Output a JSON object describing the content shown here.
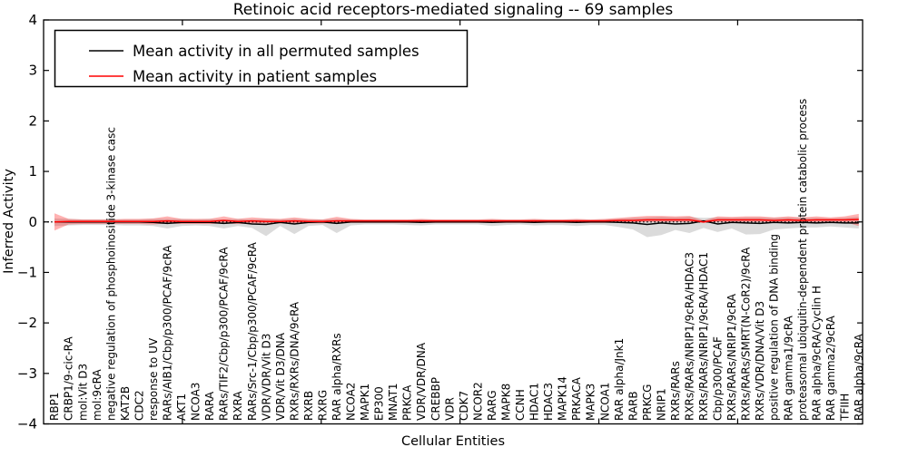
{
  "figure": {
    "kind": "matplotlib-line-plot"
  },
  "chart_data": {
    "type": "line",
    "title": "Retinoic acid receptors-mediated signaling -- 69 samples",
    "xlabel": "Cellular Entities",
    "ylabel": "Inferred Activity",
    "ylim": [
      -4,
      4
    ],
    "yticks": [
      4,
      3,
      2,
      1,
      0,
      -1,
      -2,
      -3,
      -4
    ],
    "x_major_ticks": [
      10,
      20,
      30,
      40,
      50
    ],
    "grid": false,
    "legend_position": "upper left",
    "zero_line": {
      "show": true,
      "style": "dotted",
      "color": "#000000"
    },
    "colors": {
      "permuted_line": "#000000",
      "patient_line": "#ff0000",
      "permuted_band": "#999999",
      "permuted_band_opacity": 0.35,
      "patient_band": "#ff0000",
      "patient_band_opacity": 0.3
    },
    "categories": [
      "RBP1",
      "CRBP1/9-cic-RA",
      "mol:Vit D3",
      "mol:9cRA",
      "negative regulation of phosphoinositide 3-kinase casc",
      "KAT2B",
      "CDC2",
      "response to UV",
      "RARs/AIB1/Cbp/p300/PCAF/9cRA",
      "AKT1",
      "NCOA3",
      "RARA",
      "RARs/TIF2/Cbp/p300/PCAF/9cRA",
      "RXRA",
      "RARs/Src-1/Cbp/p300/PCAF/9cRA",
      "VDR/VDR/Vit D3",
      "VDR/Vit D3/DNA",
      "RXRs/RXRs/DNA/9cRA",
      "RXRB",
      "RXRG",
      "RAR alpha/RXRs",
      "NCOA2",
      "MAPK1",
      "EP300",
      "MNAT1",
      "PRKCA",
      "VDR/VDR/DNA",
      "CREBBP",
      "VDR",
      "CDK7",
      "NCOR2",
      "RARG",
      "MAPK8",
      "CCNH",
      "HDAC1",
      "HDAC3",
      "MAPK14",
      "PRKACA",
      "MAPK3",
      "NCOA1",
      "RAR alpha/Jnk1",
      "RARB",
      "PRKCG",
      "NRIP1",
      "RXRs/RARs",
      "RXRs/RARs/NRIP1/9cRA/HDAC3",
      "RXRs/RARs/NRIP1/9cRA/HDAC1",
      "Cbp/p300/PCAF",
      "RXRs/RARs/NRIP1/9cRA",
      "RXRs/RARs/SMRT(N-CoR2)/9cRA",
      "RXRs/VDR/DNA/Vit D3",
      "positive regulation of DNA binding",
      "RAR gamma1/9cRA",
      "proteasomal ubiquitin-dependent protein catabolic process",
      "RAR alpha/9cRA/Cyclin H",
      "RAR gamma2/9cRA",
      "TFIIH",
      "RAR alpha/9cRA"
    ],
    "series": [
      {
        "name": "Mean activity in all permuted samples",
        "color": "#000000",
        "values": [
          0,
          0,
          0,
          0,
          0,
          0,
          0,
          -0.01,
          -0.03,
          -0.01,
          -0.01,
          -0.01,
          -0.03,
          -0.01,
          -0.04,
          -0.05,
          -0.01,
          -0.04,
          -0.01,
          0,
          -0.03,
          0,
          0,
          0,
          0,
          0,
          -0.01,
          0,
          0,
          0,
          0,
          -0.01,
          0,
          0,
          -0.01,
          0,
          0,
          -0.01,
          0,
          0,
          -0.01,
          -0.02,
          -0.05,
          -0.02,
          -0.04,
          -0.03,
          0.02,
          -0.04,
          -0.01,
          -0.02,
          -0.03,
          -0.01,
          -0.02,
          -0.01,
          -0.02,
          -0.01,
          -0.02,
          -0.02
        ]
      },
      {
        "name": "Mean activity in patient samples",
        "color": "#ff0000",
        "values": [
          0,
          0.01,
          0.01,
          0.01,
          0.01,
          0.01,
          0.01,
          0.01,
          0.02,
          0.01,
          0.01,
          0.01,
          0.03,
          0.01,
          0.02,
          0.01,
          0.01,
          0.02,
          0.01,
          0.01,
          0.02,
          0.02,
          0.02,
          0.02,
          0.02,
          0.02,
          0.02,
          0.02,
          0.02,
          0.02,
          0.02,
          0.02,
          0.02,
          0.02,
          0.02,
          0.02,
          0.02,
          0.02,
          0.02,
          0.02,
          0.03,
          0.03,
          0.04,
          0.04,
          0.04,
          0.04,
          0,
          0.04,
          0.04,
          0.04,
          0.04,
          0.03,
          0.04,
          0.03,
          0.04,
          0.04,
          0.04,
          0.05
        ]
      }
    ],
    "bands": [
      {
        "name": "permuted-samples-band",
        "lower": [
          -0.08,
          -0.07,
          -0.06,
          -0.06,
          -0.06,
          -0.07,
          -0.07,
          -0.08,
          -0.13,
          -0.08,
          -0.07,
          -0.08,
          -0.13,
          -0.08,
          -0.12,
          -0.28,
          -0.08,
          -0.24,
          -0.08,
          -0.06,
          -0.22,
          -0.07,
          -0.05,
          -0.05,
          -0.05,
          -0.06,
          -0.07,
          -0.05,
          -0.05,
          -0.05,
          -0.05,
          -0.08,
          -0.06,
          -0.05,
          -0.07,
          -0.06,
          -0.06,
          -0.08,
          -0.06,
          -0.06,
          -0.1,
          -0.15,
          -0.3,
          -0.26,
          -0.16,
          -0.22,
          -0.12,
          -0.2,
          -0.13,
          -0.25,
          -0.24,
          -0.15,
          -0.13,
          -0.11,
          -0.11,
          -0.09,
          -0.11,
          -0.13
        ],
        "upper": [
          0.07,
          0.06,
          0.05,
          0.05,
          0.05,
          0.05,
          0.05,
          0.06,
          0.06,
          0.06,
          0.05,
          0.06,
          0.05,
          0.06,
          0.05,
          0.06,
          0.05,
          0.06,
          0.05,
          0.05,
          0.06,
          0.05,
          0.04,
          0.04,
          0.04,
          0.04,
          0.05,
          0.04,
          0.04,
          0.04,
          0.04,
          0.05,
          0.04,
          0.04,
          0.05,
          0.04,
          0.04,
          0.05,
          0.04,
          0.05,
          0.06,
          0.08,
          0.09,
          0.1,
          0.09,
          0.1,
          0.08,
          0.09,
          0.08,
          0.09,
          0.09,
          0.08,
          0.09,
          0.08,
          0.08,
          0.07,
          0.08,
          0.1
        ]
      },
      {
        "name": "patient-samples-band",
        "lower": [
          -0.17,
          -0.05,
          -0.04,
          -0.04,
          -0.04,
          -0.04,
          -0.04,
          -0.05,
          -0.03,
          -0.04,
          -0.04,
          -0.04,
          -0.03,
          -0.04,
          -0.03,
          -0.03,
          -0.03,
          -0.03,
          -0.03,
          -0.03,
          -0.02,
          -0.02,
          -0.02,
          -0.02,
          -0.02,
          -0.02,
          -0.02,
          -0.02,
          -0.02,
          -0.02,
          -0.02,
          -0.02,
          -0.02,
          -0.02,
          -0.02,
          -0.02,
          -0.02,
          -0.02,
          -0.02,
          -0.02,
          -0.01,
          -0.01,
          0,
          0,
          0,
          0,
          -0.02,
          0,
          0,
          0,
          0,
          0,
          0,
          0,
          0,
          0,
          0,
          -0.08
        ],
        "upper": [
          0.17,
          0.06,
          0.05,
          0.05,
          0.05,
          0.06,
          0.06,
          0.07,
          0.11,
          0.06,
          0.06,
          0.06,
          0.11,
          0.06,
          0.09,
          0.07,
          0.06,
          0.09,
          0.06,
          0.05,
          0.1,
          0.06,
          0.05,
          0.05,
          0.05,
          0.05,
          0.06,
          0.05,
          0.05,
          0.05,
          0.05,
          0.06,
          0.05,
          0.05,
          0.06,
          0.05,
          0.05,
          0.06,
          0.05,
          0.06,
          0.08,
          0.1,
          0.12,
          0.12,
          0.11,
          0.12,
          0.03,
          0.11,
          0.1,
          0.11,
          0.11,
          0.09,
          0.11,
          0.09,
          0.11,
          0.09,
          0.11,
          0.16
        ]
      }
    ]
  }
}
